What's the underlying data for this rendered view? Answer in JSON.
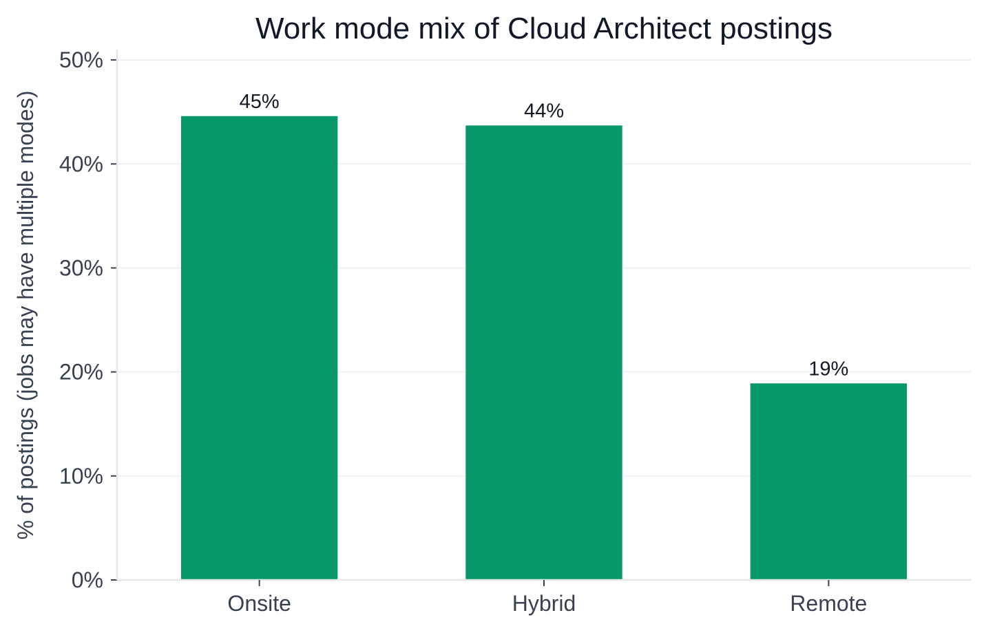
{
  "chart_data": {
    "type": "bar",
    "title": "Work mode mix of Cloud Architect postings",
    "xlabel": "",
    "ylabel": "% of postings (jobs may have multiple modes)",
    "categories": [
      "Onsite",
      "Hybrid",
      "Remote"
    ],
    "values": [
      44.6,
      43.7,
      18.9
    ],
    "data_labels": [
      "45%",
      "44%",
      "19%"
    ],
    "ylim": [
      0,
      51
    ],
    "yticks": [
      0,
      10,
      20,
      30,
      40,
      50
    ],
    "ytick_labels": [
      "0%",
      "10%",
      "20%",
      "30%",
      "40%",
      "50%"
    ],
    "grid": true,
    "legend": "none",
    "bar_color": "#07976a"
  }
}
